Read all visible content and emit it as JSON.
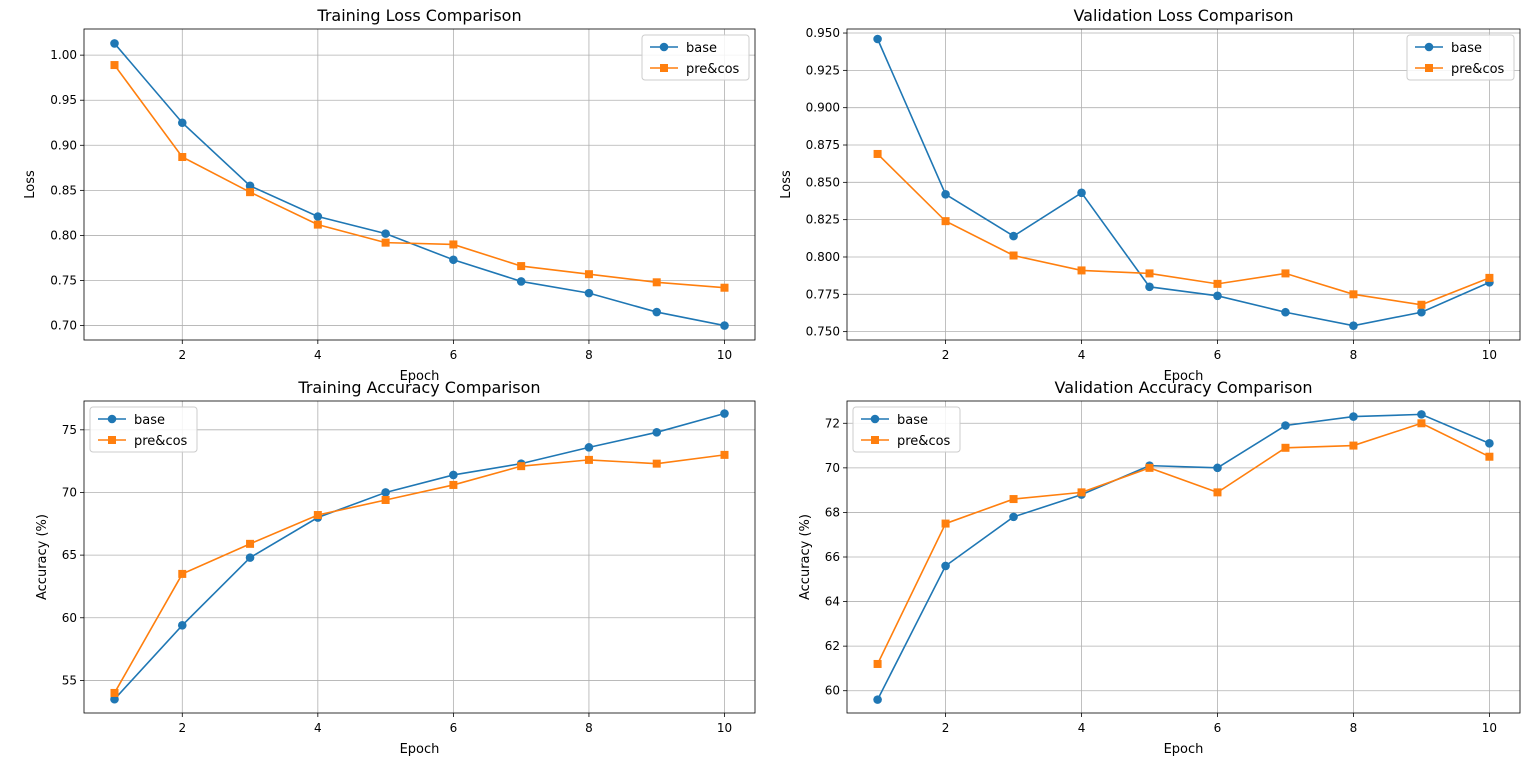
{
  "chart_data": [
    {
      "type": "line",
      "title": "Training Loss Comparison",
      "xlabel": "Epoch",
      "ylabel": "Loss",
      "x": [
        1,
        2,
        3,
        4,
        5,
        6,
        7,
        8,
        9,
        10
      ],
      "xlim": [
        0.55,
        10.45
      ],
      "ylim": [
        0.684,
        1.029
      ],
      "xticks": [
        2,
        4,
        6,
        8,
        10
      ],
      "yticks": [
        0.7,
        0.75,
        0.8,
        0.85,
        0.9,
        0.95,
        1.0
      ],
      "ytick_labels": [
        "0.70",
        "0.75",
        "0.80",
        "0.85",
        "0.90",
        "0.95",
        "1.00"
      ],
      "grid": true,
      "legend": "top-right",
      "series": [
        {
          "name": "base",
          "marker": "circle",
          "color": "#1f77b4",
          "values": [
            1.013,
            0.925,
            0.855,
            0.821,
            0.802,
            0.773,
            0.749,
            0.736,
            0.715,
            0.7
          ]
        },
        {
          "name": "pre&cos",
          "marker": "square",
          "color": "#ff7f0e",
          "values": [
            0.989,
            0.887,
            0.848,
            0.812,
            0.792,
            0.79,
            0.766,
            0.757,
            0.748,
            0.742
          ]
        }
      ]
    },
    {
      "type": "line",
      "title": "Validation Loss Comparison",
      "xlabel": "Epoch",
      "ylabel": "Loss",
      "x": [
        1,
        2,
        3,
        4,
        5,
        6,
        7,
        8,
        9,
        10
      ],
      "xlim": [
        0.55,
        10.45
      ],
      "ylim": [
        0.7444,
        0.9527
      ],
      "xticks": [
        2,
        4,
        6,
        8,
        10
      ],
      "yticks": [
        0.75,
        0.775,
        0.8,
        0.825,
        0.85,
        0.875,
        0.9,
        0.925,
        0.95
      ],
      "ytick_labels": [
        "0.750",
        "0.775",
        "0.800",
        "0.825",
        "0.850",
        "0.875",
        "0.900",
        "0.925",
        "0.950"
      ],
      "grid": true,
      "legend": "top-right",
      "series": [
        {
          "name": "base",
          "marker": "circle",
          "color": "#1f77b4",
          "values": [
            0.946,
            0.842,
            0.814,
            0.843,
            0.78,
            0.774,
            0.763,
            0.754,
            0.763,
            0.783
          ]
        },
        {
          "name": "pre&cos",
          "marker": "square",
          "color": "#ff7f0e",
          "values": [
            0.869,
            0.824,
            0.801,
            0.791,
            0.789,
            0.782,
            0.789,
            0.775,
            0.768,
            0.786
          ]
        }
      ]
    },
    {
      "type": "line",
      "title": "Training Accuracy Comparison",
      "xlabel": "Epoch",
      "ylabel": "Accuracy (%)",
      "x": [
        1,
        2,
        3,
        4,
        5,
        6,
        7,
        8,
        9,
        10
      ],
      "xlim": [
        0.55,
        10.45
      ],
      "ylim": [
        52.4,
        77.3
      ],
      "xticks": [
        2,
        4,
        6,
        8,
        10
      ],
      "yticks": [
        55,
        60,
        65,
        70,
        75
      ],
      "ytick_labels": [
        "55",
        "60",
        "65",
        "70",
        "75"
      ],
      "grid": true,
      "legend": "top-left",
      "series": [
        {
          "name": "base",
          "marker": "circle",
          "color": "#1f77b4",
          "values": [
            53.5,
            59.4,
            64.8,
            68.0,
            70.0,
            71.4,
            72.3,
            73.6,
            74.8,
            76.3
          ]
        },
        {
          "name": "pre&cos",
          "marker": "square",
          "color": "#ff7f0e",
          "values": [
            54.0,
            63.5,
            65.9,
            68.2,
            69.4,
            70.6,
            72.1,
            72.6,
            72.3,
            73.0
          ]
        }
      ]
    },
    {
      "type": "line",
      "title": "Validation Accuracy Comparison",
      "xlabel": "Epoch",
      "ylabel": "Accuracy (%)",
      "x": [
        1,
        2,
        3,
        4,
        5,
        6,
        7,
        8,
        9,
        10
      ],
      "xlim": [
        0.55,
        10.45
      ],
      "ylim": [
        59.0,
        73.0
      ],
      "xticks": [
        2,
        4,
        6,
        8,
        10
      ],
      "yticks": [
        60,
        62,
        64,
        66,
        68,
        70,
        72
      ],
      "ytick_labels": [
        "60",
        "62",
        "64",
        "66",
        "68",
        "70",
        "72"
      ],
      "grid": true,
      "legend": "top-left",
      "series": [
        {
          "name": "base",
          "marker": "circle",
          "color": "#1f77b4",
          "values": [
            59.6,
            65.6,
            67.8,
            68.8,
            70.1,
            70.0,
            71.9,
            72.3,
            72.4,
            71.1
          ]
        },
        {
          "name": "pre&cos",
          "marker": "square",
          "color": "#ff7f0e",
          "values": [
            61.2,
            67.5,
            68.6,
            68.9,
            70.0,
            68.9,
            70.9,
            71.0,
            72.0,
            70.5
          ]
        }
      ]
    }
  ]
}
